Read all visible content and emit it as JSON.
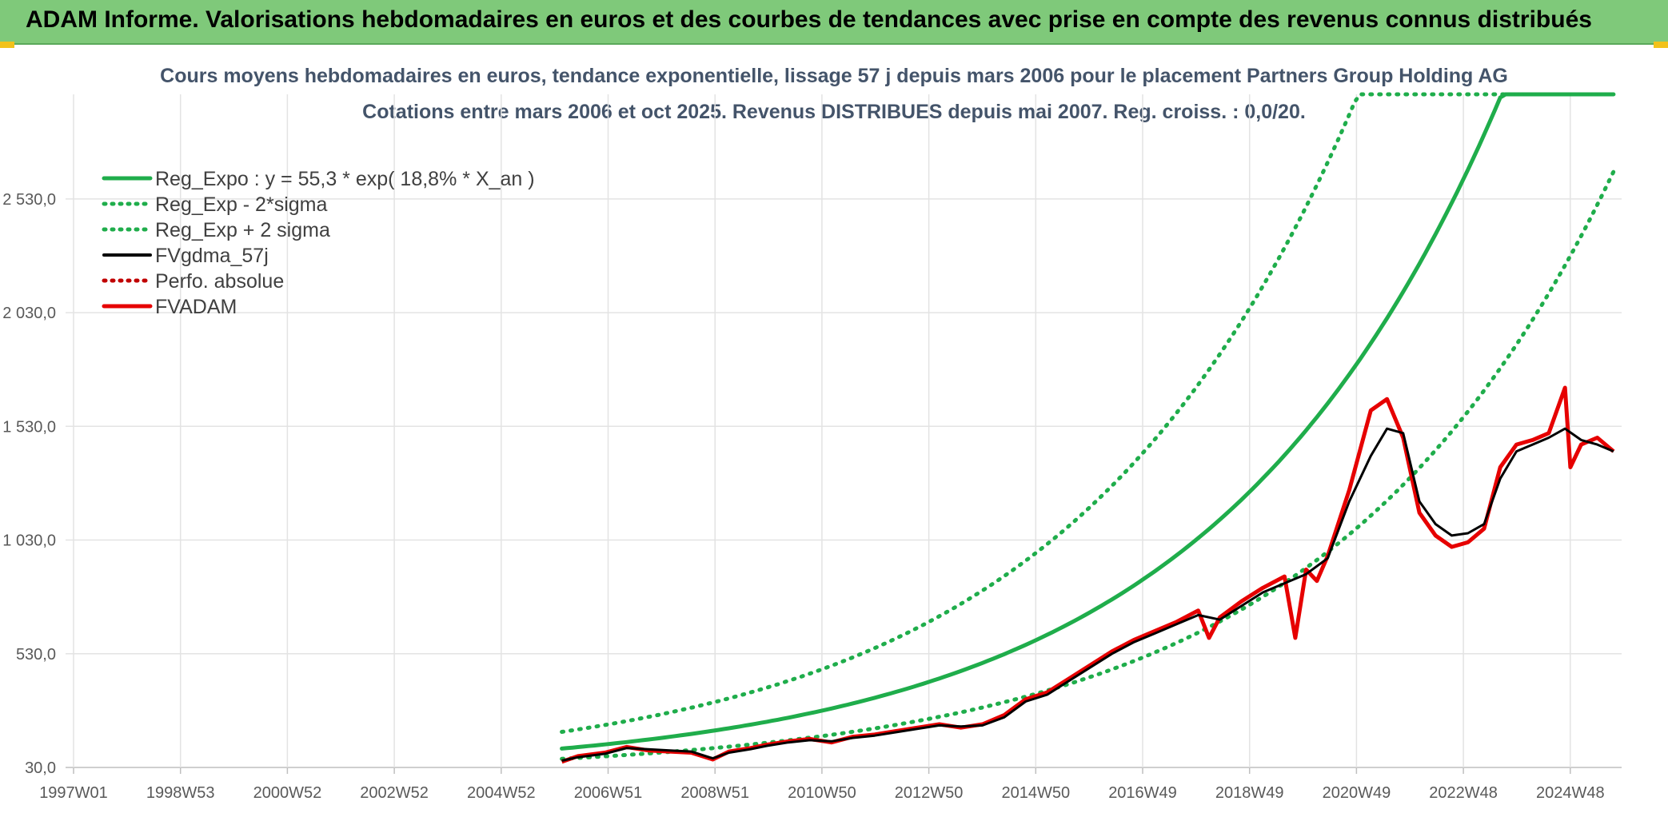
{
  "banner": {
    "text": "ADAM Informe. Valorisations hebdomadaires en euros et des courbes de tendances avec prise en compte des revenus connus distribués"
  },
  "chart_data": {
    "type": "line",
    "title": "Cours moyens hebdomadaires en euros, tendance exponentielle, lissage 57 j depuis mars 2006 pour le placement Partners Group Holding AG",
    "subtitle": "Cotations entre mars 2006 et oct 2025. Revenus DISTRIBUES depuis mai 2007. Reg. croiss. : 0,0/20.",
    "xlabel": "",
    "ylabel": "",
    "x_ticks": [
      "1997W01",
      "1998W53",
      "2000W52",
      "2002W52",
      "2004W52",
      "2006W51",
      "2008W51",
      "2010W50",
      "2012W50",
      "2014W50",
      "2016W49",
      "2018W49",
      "2020W49",
      "2022W48",
      "2024W48"
    ],
    "xlim": [
      1997.0,
      2025.85
    ],
    "y_ticks": [
      "30,0",
      "530,0",
      "1 030,0",
      "1 530,0",
      "2 030,0",
      "2 530,0"
    ],
    "y_tick_values": [
      30,
      530,
      1030,
      1530,
      2030,
      2530
    ],
    "ylim": [
      30,
      2990
    ],
    "grid": true,
    "legend_position": "top-left",
    "regression": {
      "a": 55.3,
      "rate": 0.188,
      "x0": 2006.0,
      "sigma_factor_low": 0.6,
      "sigma_factor_high": 1.65
    },
    "series": [
      {
        "name": "Reg_Expo : y = 55,3 * exp( 18,8% *  X_an )",
        "color": "#1fad4b",
        "style": "solid"
      },
      {
        "name": "Reg_Exp - 2*sigma",
        "color": "#1fad4b",
        "style": "dotted"
      },
      {
        "name": "Reg_Exp + 2 sigma",
        "color": "#1fad4b",
        "style": "dotted"
      },
      {
        "name": "FVgdma_57j",
        "color": "#000000",
        "style": "solid",
        "x": [
          2006.2,
          2006.5,
          2007.0,
          2007.4,
          2007.8,
          2008.2,
          2008.6,
          2009.0,
          2009.3,
          2009.7,
          2010.0,
          2010.4,
          2010.8,
          2011.2,
          2011.6,
          2012.0,
          2012.4,
          2012.8,
          2013.2,
          2013.6,
          2014.0,
          2014.4,
          2014.8,
          2015.2,
          2015.6,
          2016.0,
          2016.4,
          2016.8,
          2017.2,
          2017.6,
          2018.0,
          2018.4,
          2018.8,
          2019.2,
          2019.6,
          2020.0,
          2020.4,
          2020.8,
          2021.2,
          2021.5,
          2021.8,
          2022.1,
          2022.4,
          2022.7,
          2023.0,
          2023.3,
          2023.6,
          2023.9,
          2024.2,
          2024.5,
          2024.8,
          2025.1,
          2025.4,
          2025.7
        ],
        "y": [
          60,
          75,
          90,
          115,
          110,
          105,
          100,
          70,
          95,
          110,
          125,
          140,
          150,
          145,
          160,
          170,
          185,
          200,
          215,
          210,
          215,
          250,
          320,
          350,
          410,
          470,
          530,
          580,
          620,
          660,
          700,
          680,
          740,
          800,
          840,
          880,
          950,
          1200,
          1400,
          1520,
          1500,
          1200,
          1100,
          1050,
          1060,
          1100,
          1300,
          1420,
          1450,
          1480,
          1520,
          1470,
          1450,
          1420
        ]
      },
      {
        "name": "Perfo. absolue",
        "color": "#c00000",
        "style": "dotted"
      },
      {
        "name": "FVADAM",
        "color": "#e60000",
        "style": "solid",
        "x": [
          2006.2,
          2006.5,
          2007.0,
          2007.4,
          2007.8,
          2008.2,
          2008.6,
          2009.0,
          2009.3,
          2009.7,
          2010.0,
          2010.4,
          2010.8,
          2011.2,
          2011.6,
          2012.0,
          2012.4,
          2012.8,
          2013.2,
          2013.6,
          2014.0,
          2014.4,
          2014.8,
          2015.2,
          2015.6,
          2016.0,
          2016.4,
          2016.8,
          2017.2,
          2017.6,
          2018.0,
          2018.2,
          2018.4,
          2018.8,
          2019.2,
          2019.6,
          2019.8,
          2020.0,
          2020.2,
          2020.4,
          2020.8,
          2021.2,
          2021.5,
          2021.8,
          2022.1,
          2022.4,
          2022.7,
          2023.0,
          2023.3,
          2023.6,
          2023.9,
          2024.2,
          2024.5,
          2024.8,
          2024.9,
          2025.1,
          2025.4,
          2025.7
        ],
        "y": [
          55,
          80,
          95,
          120,
          105,
          100,
          95,
          65,
          100,
          115,
          130,
          145,
          155,
          140,
          165,
          175,
          190,
          205,
          220,
          205,
          220,
          260,
          330,
          360,
          420,
          480,
          540,
          590,
          630,
          670,
          720,
          600,
          690,
          760,
          820,
          870,
          600,
          900,
          850,
          960,
          1250,
          1600,
          1650,
          1480,
          1150,
          1050,
          1000,
          1020,
          1080,
          1350,
          1450,
          1470,
          1500,
          1700,
          1350,
          1450,
          1480,
          1420
        ]
      }
    ]
  }
}
